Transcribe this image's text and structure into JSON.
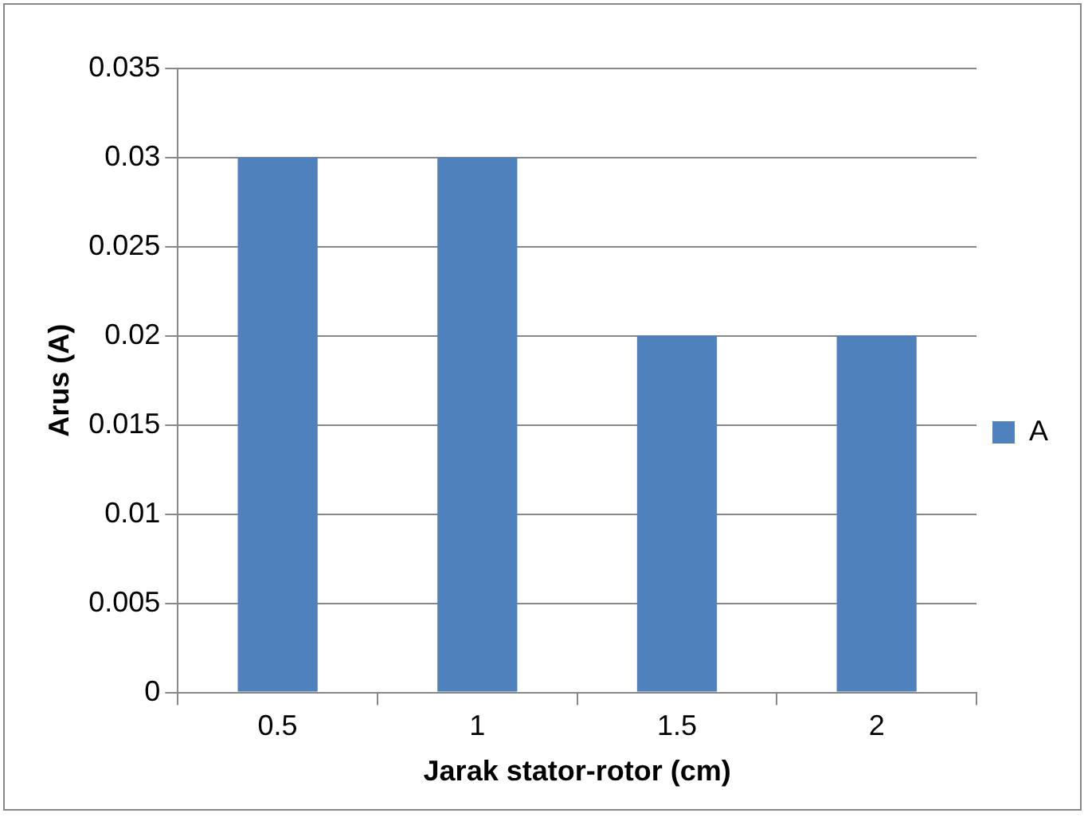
{
  "chart_data": {
    "type": "bar",
    "xlabel": "Jarak stator-rotor (cm)",
    "ylabel": "Arus (A)",
    "categories": [
      "0.5",
      "1",
      "1.5",
      "2"
    ],
    "series": [
      {
        "name": "A",
        "color": "#4f81bd",
        "values": [
          0.03,
          0.03,
          0.02,
          0.02
        ]
      }
    ],
    "ylim": [
      0,
      0.035
    ],
    "yticks": [
      0,
      0.005,
      0.01,
      0.015,
      0.02,
      0.025,
      0.03,
      0.035
    ],
    "grid": "y",
    "legend": "right"
  }
}
